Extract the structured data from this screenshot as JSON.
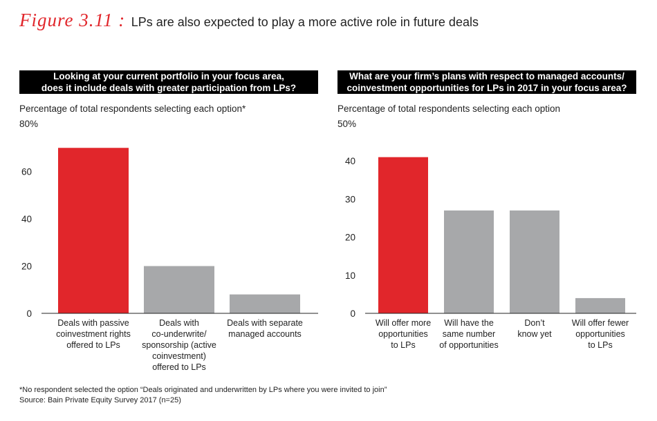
{
  "figure": {
    "label": "Figure 3.11 :",
    "title": "LPs are also expected to play a more active role in future deals"
  },
  "colors": {
    "highlight": "#e1262b",
    "neutral": "#a7a8aa",
    "header_bg": "#000000"
  },
  "chart_data": [
    {
      "type": "bar",
      "title_lines": [
        "Looking at your current portfolio in your focus area,",
        "does it include deals with greater participation from LPs?"
      ],
      "subtitle": "Percentage of total respondents selecting each option*",
      "ymax_label": "80%",
      "ylim": [
        0,
        80
      ],
      "yticks": [
        0,
        20,
        40,
        60
      ],
      "categories": [
        [
          "Deals with passive",
          "coinvestment rights",
          "offered to LPs"
        ],
        [
          "Deals with",
          "co-underwrite/",
          "sponsorship (active",
          "coinvestment)",
          "offered to LPs"
        ],
        [
          "Deals with separate",
          "managed accounts"
        ]
      ],
      "values": [
        70,
        20,
        8
      ],
      "highlight_index": 0
    },
    {
      "type": "bar",
      "title_lines": [
        "What are your firm’s plans with respect to managed accounts/",
        "coinvestment opportunities for LPs in 2017 in your focus area?"
      ],
      "subtitle": "Percentage of total respondents selecting each option",
      "ymax_label": "50%",
      "ylim": [
        0,
        50
      ],
      "yticks": [
        0,
        10,
        20,
        30,
        40
      ],
      "categories": [
        [
          "Will offer more",
          "opportunities",
          "to LPs"
        ],
        [
          "Will have the",
          "same number",
          "of opportunities"
        ],
        [
          "Don’t",
          "know yet"
        ],
        [
          "Will offer fewer",
          "opportunities",
          "to LPs"
        ]
      ],
      "values": [
        41,
        27,
        27,
        4
      ],
      "highlight_index": 0
    }
  ],
  "footer": {
    "note": "*No respondent selected the option “Deals originated and underwritten by LPs where you were invited to join”",
    "source": "Source: Bain Private Equity Survey 2017 (n=25)"
  }
}
